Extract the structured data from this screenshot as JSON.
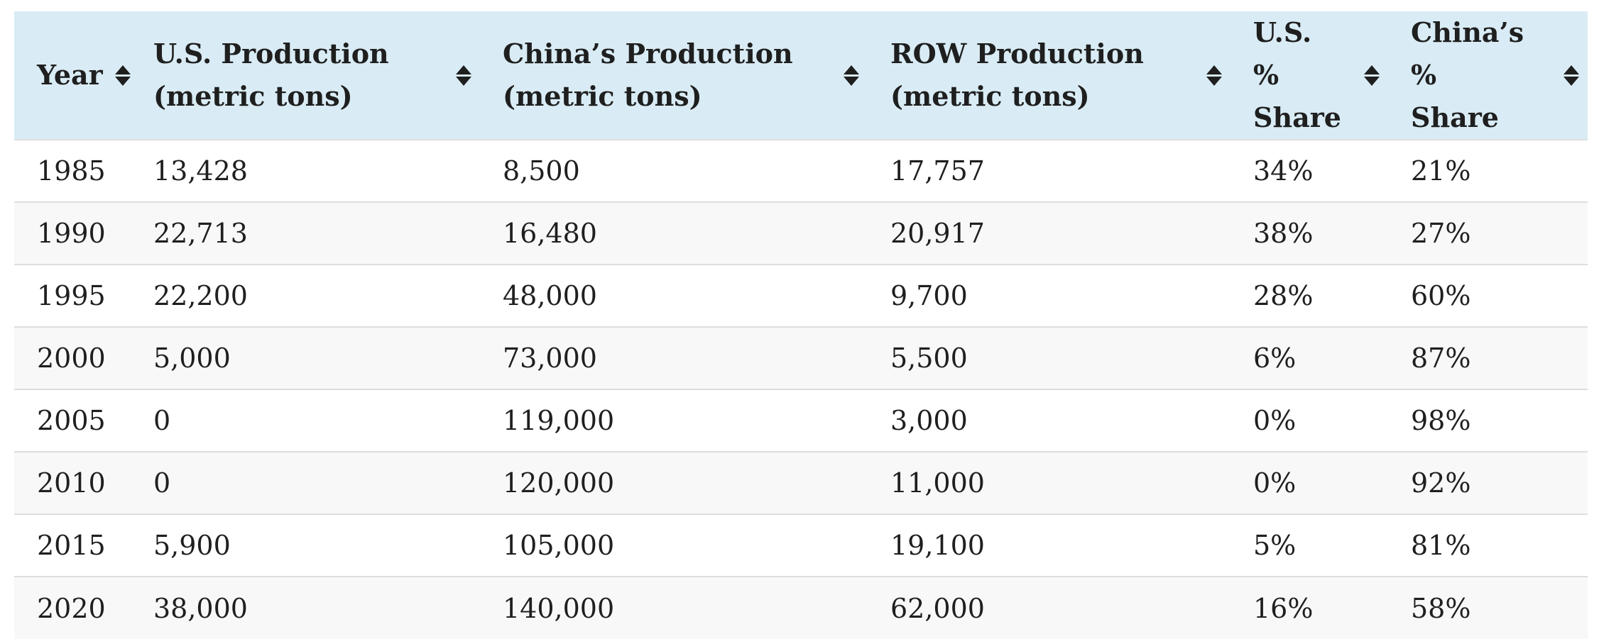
{
  "table": {
    "columns": [
      {
        "label_line1": "Year",
        "label_line2": ""
      },
      {
        "label_line1": "U.S. Production",
        "label_line2": "(metric tons)"
      },
      {
        "label_line1": "China’s Production",
        "label_line2": "(metric tons)"
      },
      {
        "label_line1": "ROW Production",
        "label_line2": "(metric tons)"
      },
      {
        "label_line1": "U.S. %",
        "label_line2": "Share"
      },
      {
        "label_line1": "China’s %",
        "label_line2": "Share"
      }
    ],
    "rows": [
      [
        "1985",
        "13,428",
        "8,500",
        "17,757",
        "34%",
        "21%"
      ],
      [
        "1990",
        "22,713",
        "16,480",
        "20,917",
        "38%",
        "27%"
      ],
      [
        "1995",
        "22,200",
        "48,000",
        "9,700",
        "28%",
        "60%"
      ],
      [
        "2000",
        "5,000",
        "73,000",
        "5,500",
        "6%",
        "87%"
      ],
      [
        "2005",
        "0",
        "119,000",
        "3,000",
        "0%",
        "98%"
      ],
      [
        "2010",
        "0",
        "120,000",
        "11,000",
        "0%",
        "92%"
      ],
      [
        "2015",
        "5,900",
        "105,000",
        "19,100",
        "5%",
        "81%"
      ],
      [
        "2020",
        "38,000",
        "140,000",
        "62,000",
        "16%",
        "58%"
      ]
    ]
  },
  "colors": {
    "header_background": "#d9ecf5",
    "row_stripe": "#f8f8f8",
    "row_border": "#dddddd"
  }
}
